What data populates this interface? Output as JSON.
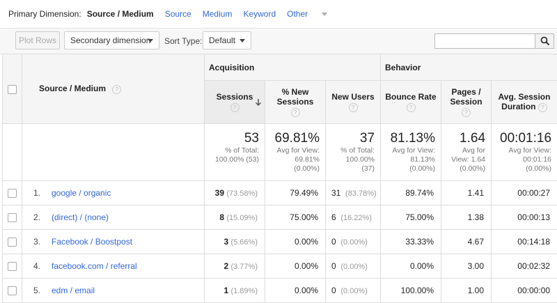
{
  "primary_dimension": {
    "label": "Primary Dimension:",
    "current": "Source / Medium",
    "options": [
      "Source",
      "Medium",
      "Keyword",
      "Other"
    ]
  },
  "toolbar": {
    "plot_rows": "Plot Rows",
    "secondary_dimension": "Secondary dimension",
    "sort_type_label": "Sort Type:",
    "sort_type_value": "Default",
    "search_value": ""
  },
  "table": {
    "dimension_header": "Source / Medium",
    "groups": {
      "acquisition": "Acquisition",
      "behavior": "Behavior"
    },
    "columns": {
      "sessions": "Sessions",
      "new_sessions": "% New Sessions",
      "new_users": "New Users",
      "bounce_rate": "Bounce Rate",
      "pages_session": "Pages / Session",
      "avg_duration": "Avg. Session Duration"
    },
    "totals": {
      "sessions": "53",
      "sessions_sub": "% of Total: 100.00% (53)",
      "new_sessions": "69.81%",
      "new_sessions_sub": "Avg for View: 69.81% (0.00%)",
      "new_users": "37",
      "new_users_sub": "% of Total: 100.00% (37)",
      "bounce_rate": "81.13%",
      "bounce_rate_sub": "Avg for View: 81.13% (0.00%)",
      "pages_session": "1.64",
      "pages_session_sub": "Avg for View: 1.64 (0.00%)",
      "avg_duration": "00:01:16",
      "avg_duration_sub": "Avg for View: 00:01:16 (0.00%)"
    },
    "rows": [
      {
        "idx": "1.",
        "source": "google / organic",
        "sessions": "39",
        "sessions_pct": "(73.58%)",
        "new_sessions": "79.49%",
        "new_users": "31",
        "new_users_pct": "(83.78%)",
        "bounce_rate": "89.74%",
        "pages_session": "1.41",
        "avg_duration": "00:00:27"
      },
      {
        "idx": "2.",
        "source": "(direct) / (none)",
        "sessions": "8",
        "sessions_pct": "(15.09%)",
        "new_sessions": "75.00%",
        "new_users": "6",
        "new_users_pct": "(16.22%)",
        "bounce_rate": "75.00%",
        "pages_session": "1.38",
        "avg_duration": "00:00:13"
      },
      {
        "idx": "3.",
        "source": "Facebook / Boostpost",
        "sessions": "3",
        "sessions_pct": "(5.66%)",
        "new_sessions": "0.00%",
        "new_users": "0",
        "new_users_pct": "(0.00%)",
        "bounce_rate": "33.33%",
        "pages_session": "4.67",
        "avg_duration": "00:14:18"
      },
      {
        "idx": "4.",
        "source": "facebook.com / referral",
        "sessions": "2",
        "sessions_pct": "(3.77%)",
        "new_sessions": "0.00%",
        "new_users": "0",
        "new_users_pct": "(0.00%)",
        "bounce_rate": "0.00%",
        "pages_session": "3.00",
        "avg_duration": "00:02:32"
      },
      {
        "idx": "5.",
        "source": "edm / email",
        "sessions": "1",
        "sessions_pct": "(1.89%)",
        "new_sessions": "0.00%",
        "new_users": "0",
        "new_users_pct": "(0.00%)",
        "bounce_rate": "100.00%",
        "pages_session": "1.00",
        "avg_duration": "00:00:00"
      }
    ]
  }
}
